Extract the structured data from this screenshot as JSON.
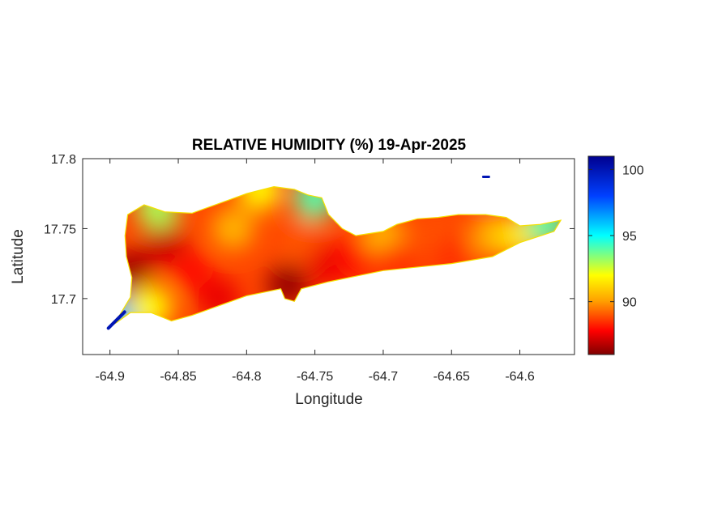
{
  "chart_data": {
    "type": "heatmap",
    "title": "RELATIVE HUMIDITY (%) 19-Apr-2025",
    "xlabel": "Longitude",
    "ylabel": "Latitude",
    "xlim": [
      -64.92,
      -64.56
    ],
    "ylim": [
      17.66,
      17.8
    ],
    "xticks": [
      "-64.9",
      "-64.85",
      "-64.8",
      "-64.75",
      "-64.7",
      "-64.65",
      "-64.6"
    ],
    "xtick_values": [
      -64.9,
      -64.85,
      -64.8,
      -64.75,
      -64.7,
      -64.65,
      -64.6
    ],
    "yticks": [
      "17.7",
      "17.75",
      "17.8"
    ],
    "ytick_values": [
      17.7,
      17.75,
      17.8
    ],
    "colorbar": {
      "colormap": "jet",
      "range": [
        86,
        101
      ],
      "ticks": [
        "90",
        "95",
        "100"
      ],
      "tick_values": [
        90,
        95,
        100
      ],
      "position": "right"
    },
    "grid": false,
    "region_outline_lonlat": [
      [
        -64.9,
        17.68
      ],
      [
        -64.893,
        17.688
      ],
      [
        -64.885,
        17.701
      ],
      [
        -64.884,
        17.715
      ],
      [
        -64.888,
        17.73
      ],
      [
        -64.889,
        17.745
      ],
      [
        -64.887,
        17.76
      ],
      [
        -64.875,
        17.767
      ],
      [
        -64.86,
        17.762
      ],
      [
        -64.84,
        17.761
      ],
      [
        -64.82,
        17.768
      ],
      [
        -64.8,
        17.775
      ],
      [
        -64.78,
        17.78
      ],
      [
        -64.765,
        17.778
      ],
      [
        -64.755,
        17.774
      ],
      [
        -64.745,
        17.772
      ],
      [
        -64.74,
        17.76
      ],
      [
        -64.73,
        17.75
      ],
      [
        -64.72,
        17.745
      ],
      [
        -64.7,
        17.748
      ],
      [
        -64.69,
        17.753
      ],
      [
        -64.675,
        17.757
      ],
      [
        -64.66,
        17.758
      ],
      [
        -64.645,
        17.76
      ],
      [
        -64.625,
        17.76
      ],
      [
        -64.61,
        17.758
      ],
      [
        -64.6,
        17.752
      ],
      [
        -64.585,
        17.753
      ],
      [
        -64.57,
        17.756
      ],
      [
        -64.575,
        17.748
      ],
      [
        -64.6,
        17.74
      ],
      [
        -64.62,
        17.73
      ],
      [
        -64.65,
        17.725
      ],
      [
        -64.68,
        17.722
      ],
      [
        -64.7,
        17.72
      ],
      [
        -64.72,
        17.716
      ],
      [
        -64.74,
        17.712
      ],
      [
        -64.76,
        17.707
      ],
      [
        -64.765,
        17.698
      ],
      [
        -64.772,
        17.7
      ],
      [
        -64.775,
        17.707
      ],
      [
        -64.8,
        17.702
      ],
      [
        -64.82,
        17.695
      ],
      [
        -64.84,
        17.688
      ],
      [
        -64.855,
        17.684
      ],
      [
        -64.87,
        17.69
      ],
      [
        -64.885,
        17.69
      ],
      [
        -64.895,
        17.683
      ]
    ],
    "humidity_samples": [
      {
        "lon": -64.9,
        "lat": 17.68,
        "rh": 100
      },
      {
        "lon": -64.895,
        "lat": 17.687,
        "rh": 96
      },
      {
        "lon": -64.885,
        "lat": 17.72,
        "rh": 86.5
      },
      {
        "lon": -64.86,
        "lat": 17.74,
        "rh": 87
      },
      {
        "lon": -64.84,
        "lat": 17.72,
        "rh": 88
      },
      {
        "lon": -64.865,
        "lat": 17.765,
        "rh": 93
      },
      {
        "lon": -64.87,
        "lat": 17.694,
        "rh": 92
      },
      {
        "lon": -64.82,
        "lat": 17.7,
        "rh": 87.5
      },
      {
        "lon": -64.81,
        "lat": 17.75,
        "rh": 90.5
      },
      {
        "lon": -64.79,
        "lat": 17.778,
        "rh": 92
      },
      {
        "lon": -64.77,
        "lat": 17.71,
        "rh": 86.3
      },
      {
        "lon": -64.76,
        "lat": 17.74,
        "rh": 89
      },
      {
        "lon": -64.75,
        "lat": 17.772,
        "rh": 94
      },
      {
        "lon": -64.74,
        "lat": 17.725,
        "rh": 87.5
      },
      {
        "lon": -64.72,
        "lat": 17.73,
        "rh": 88
      },
      {
        "lon": -64.7,
        "lat": 17.745,
        "rh": 90.5
      },
      {
        "lon": -64.69,
        "lat": 17.725,
        "rh": 88.5
      },
      {
        "lon": -64.66,
        "lat": 17.74,
        "rh": 89
      },
      {
        "lon": -64.65,
        "lat": 17.73,
        "rh": 88.5
      },
      {
        "lon": -64.62,
        "lat": 17.745,
        "rh": 90.5
      },
      {
        "lon": -64.6,
        "lat": 17.745,
        "rh": 91.5
      },
      {
        "lon": -64.58,
        "lat": 17.753,
        "rh": 94
      },
      {
        "lon": -64.625,
        "lat": 17.787,
        "rh": 100
      }
    ]
  }
}
